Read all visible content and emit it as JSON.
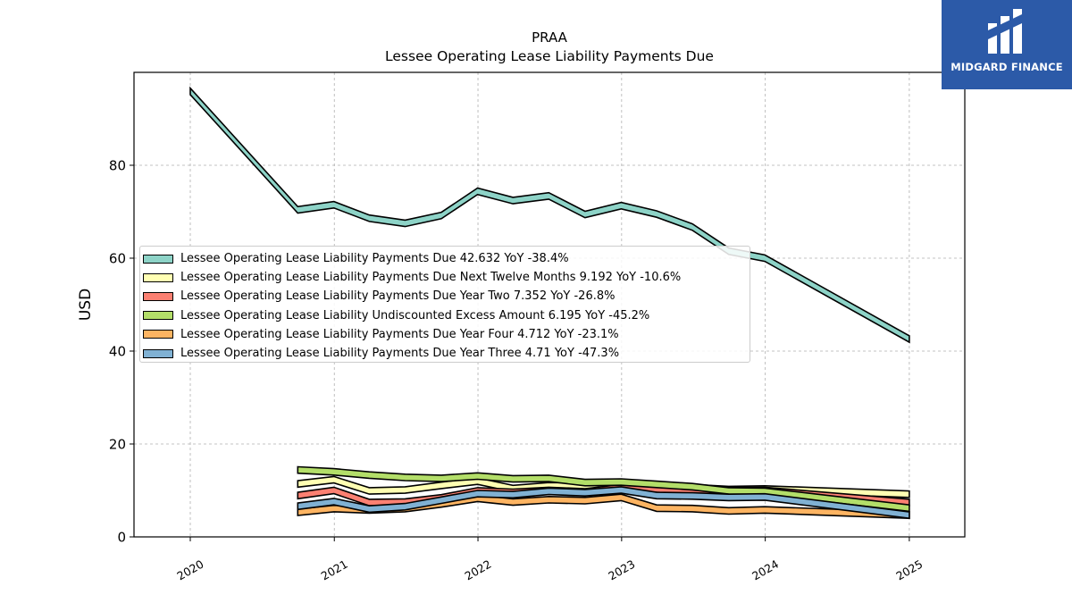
{
  "logo": {
    "brand_text": "MIDGARD FINANCE"
  },
  "chart_data": {
    "type": "area",
    "title": "PRAA",
    "subtitle": "Lessee Operating Lease Liability Payments Due",
    "ylabel": "USD",
    "xlabel": "",
    "ylim": [
      0,
      100
    ],
    "yticks": [
      0,
      20,
      40,
      60,
      80
    ],
    "xticks": [
      "2020",
      "2021",
      "2022",
      "2023",
      "2024",
      "2025"
    ],
    "grid": true,
    "legend_position": "center-left",
    "series": [
      {
        "name": "Lessee Operating Lease Liability Payments Due",
        "legend_label": "Lessee Operating Lease Liability Payments Due  42.632 YoY -38.4%",
        "color": "#8dd3c7",
        "x": [
          "2020-01-01",
          "2020-09-30",
          "2020-12-31",
          "2021-03-31",
          "2021-06-30",
          "2021-09-30",
          "2021-12-31",
          "2022-03-31",
          "2022-06-30",
          "2022-09-30",
          "2022-12-31",
          "2023-03-31",
          "2023-06-30",
          "2023-09-30",
          "2023-12-31",
          "2025-01-01"
        ],
        "values": [
          95.9,
          70.4,
          71.5,
          68.6,
          67.5,
          69.2,
          74.4,
          72.4,
          73.4,
          69.4,
          71.3,
          69.5,
          66.7,
          61.5,
          60.0,
          42.6
        ]
      },
      {
        "name": "Lessee Operating Lease Liability Payments Due Next Twelve Months",
        "legend_label": "Lessee Operating Lease Liability Payments Due Next Twelve Months  9.192 YoY -10.6%",
        "color": "#ffffb3",
        "x": [
          "2020-09-30",
          "2020-12-31",
          "2021-03-31",
          "2021-06-30",
          "2021-09-30",
          "2021-12-31",
          "2022-03-31",
          "2022-06-30",
          "2022-09-30",
          "2022-12-31",
          "2023-03-31",
          "2023-06-30",
          "2023-09-30",
          "2023-12-31",
          "2025-01-01"
        ],
        "values": [
          11.4,
          12.3,
          9.9,
          10.1,
          11.1,
          12.0,
          10.4,
          11.0,
          10.9,
          11.5,
          10.9,
          10.6,
          10.2,
          10.3,
          9.2
        ]
      },
      {
        "name": "Lessee Operating Lease Liability Payments Due Year Two",
        "legend_label": "Lessee Operating Lease Liability Payments Due Year Two  7.352 YoY -26.8%",
        "color": "#fb8072",
        "x": [
          "2020-09-30",
          "2020-12-31",
          "2021-03-31",
          "2021-06-30",
          "2021-09-30",
          "2021-12-31",
          "2022-03-31",
          "2022-06-30",
          "2022-09-30",
          "2022-12-31",
          "2023-03-31",
          "2023-06-30",
          "2023-09-30",
          "2023-12-31",
          "2025-01-01"
        ],
        "values": [
          8.9,
          10.0,
          7.4,
          7.5,
          8.4,
          9.9,
          9.6,
          10.0,
          9.7,
          10.6,
          10.3,
          9.8,
          10.0,
          10.0,
          7.4
        ]
      },
      {
        "name": "Lessee Operating Lease Liability Undiscounted Excess Amount",
        "legend_label": "Lessee Operating Lease Liability Undiscounted Excess Amount  6.195 YoY -45.2%",
        "color": "#b3de69",
        "x": [
          "2020-09-30",
          "2020-12-31",
          "2021-03-31",
          "2021-06-30",
          "2021-09-30",
          "2021-12-31",
          "2022-03-31",
          "2022-06-30",
          "2022-09-30",
          "2022-12-31",
          "2023-03-31",
          "2023-06-30",
          "2023-09-30",
          "2023-12-31",
          "2025-01-01"
        ],
        "values": [
          14.4,
          14.0,
          13.3,
          12.8,
          12.6,
          13.1,
          12.5,
          12.6,
          11.7,
          11.8,
          11.3,
          10.8,
          9.9,
          9.8,
          6.2
        ]
      },
      {
        "name": "Lessee Operating Lease Liability Payments Due Year Four",
        "legend_label": "Lessee Operating Lease Liability Payments Due Year Four  4.712 YoY -23.1%",
        "color": "#fdb462",
        "x": [
          "2020-09-30",
          "2020-12-31",
          "2021-03-31",
          "2021-06-30",
          "2021-09-30",
          "2021-12-31",
          "2022-03-31",
          "2022-06-30",
          "2022-09-30",
          "2022-12-31",
          "2023-03-31",
          "2023-06-30",
          "2023-09-30",
          "2023-12-31",
          "2025-01-01"
        ],
        "values": [
          5.3,
          6.1,
          5.8,
          6.1,
          7.1,
          8.3,
          7.5,
          8.0,
          7.8,
          8.5,
          6.2,
          6.1,
          5.6,
          5.8,
          4.7
        ]
      },
      {
        "name": "Lessee Operating Lease Liability Payments Due Year Three",
        "legend_label": "Lessee Operating Lease Liability Payments Due Year Three  4.71 YoY -47.3%",
        "color": "#80b1d3",
        "x": [
          "2020-09-30",
          "2020-12-31",
          "2021-03-31",
          "2021-06-30",
          "2021-09-30",
          "2021-12-31",
          "2022-03-31",
          "2022-06-30",
          "2022-09-30",
          "2022-12-31",
          "2023-03-31",
          "2023-06-30",
          "2023-09-30",
          "2023-12-31",
          "2025-01-01"
        ],
        "values": [
          6.6,
          7.6,
          6.0,
          6.5,
          7.9,
          9.3,
          9.1,
          9.8,
          9.5,
          10.1,
          8.9,
          8.8,
          8.5,
          8.6,
          4.7
        ]
      }
    ]
  }
}
